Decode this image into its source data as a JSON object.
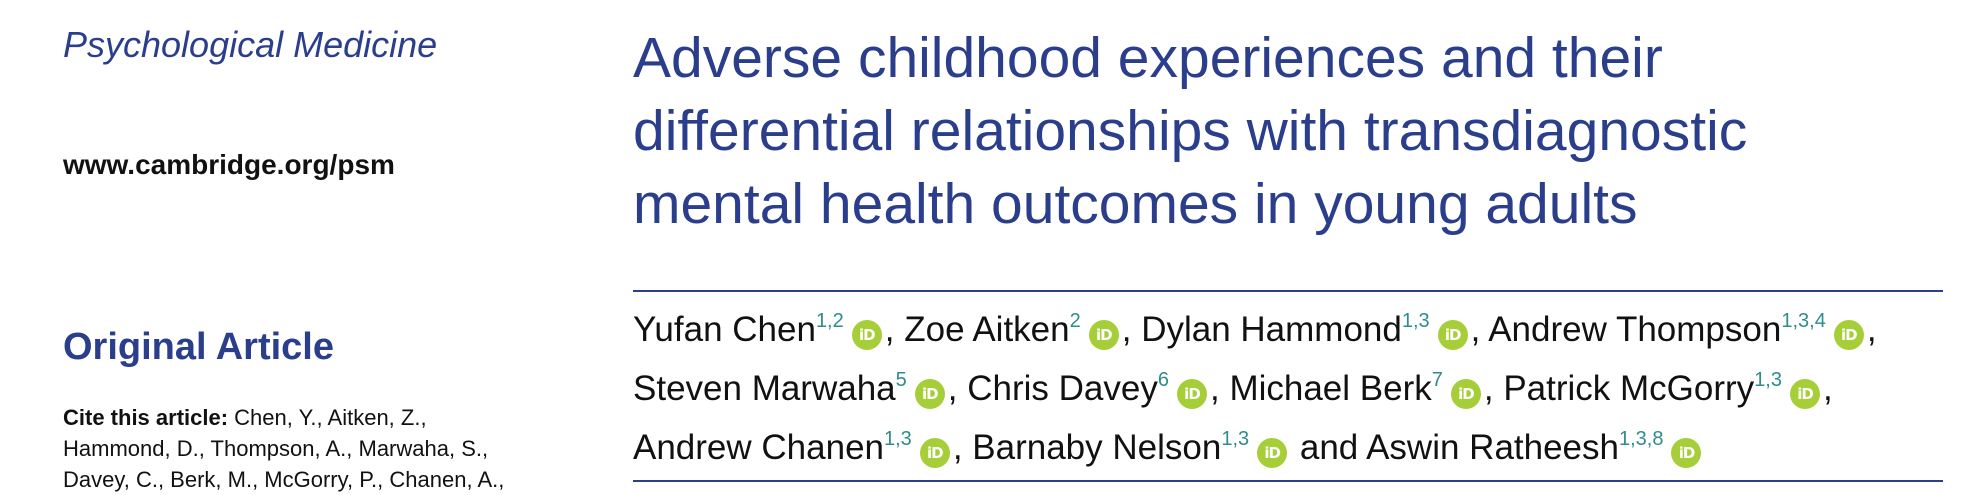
{
  "journal": "Psychological Medicine",
  "url": "www.cambridge.org/psm",
  "section": "Original Article",
  "cite": {
    "lead": "Cite this article:",
    "lines": [
      " Chen, Y., Aitken, Z.,",
      "Hammond, D., Thompson, A., Marwaha, S.,",
      "Davey, C., Berk, M., McGorry, P., Chanen, A.,"
    ]
  },
  "title_lines": [
    "Adverse childhood experiences and their",
    "differential relationships with transdiagnostic",
    "mental health outcomes in young adults"
  ],
  "orcid_label": "iD",
  "authors": [
    {
      "name": "Yufan Chen",
      "aff": "1,2"
    },
    {
      "name": "Zoe Aitken",
      "aff": "2"
    },
    {
      "name": "Dylan Hammond",
      "aff": "1,3"
    },
    {
      "name": "Andrew Thompson",
      "aff": "1,3,4"
    },
    {
      "name": "Steven Marwaha",
      "aff": "5"
    },
    {
      "name": "Chris Davey",
      "aff": "6"
    },
    {
      "name": "Michael Berk",
      "aff": "7"
    },
    {
      "name": "Patrick McGorry",
      "aff": "1,3"
    },
    {
      "name": "Andrew Chanen",
      "aff": "1,3"
    },
    {
      "name": "Barnaby Nelson",
      "aff": "1,3"
    },
    {
      "name": "Aswin Ratheesh",
      "aff": "1,3,8"
    }
  ],
  "author_joiners": {
    "comma": ",",
    "and": "and"
  },
  "colors": {
    "brand_blue": "#2a3e8c",
    "affiliation_teal": "#2f8c8c",
    "orcid_green": "#a6ce39"
  }
}
